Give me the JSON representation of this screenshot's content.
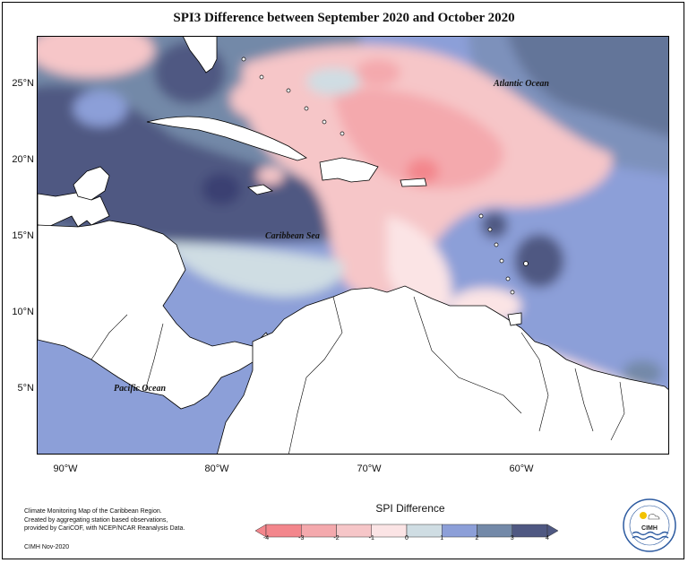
{
  "title": "SPI3 Difference between September 2020 and October 2020",
  "latitude_labels": [
    "25°N",
    "20°N",
    "15°N",
    "10°N",
    "5°N"
  ],
  "longitude_labels": [
    "90°W",
    "80°W",
    "70°W",
    "60°W"
  ],
  "ocean_labels": {
    "atlantic": "Atlantic Ocean",
    "caribbean": "Caribbean Sea",
    "pacific": "Pacific Ocean"
  },
  "credits": {
    "line1": "Climate Monitoring Map of the Caribbean Region.",
    "line2": "Created by aggregating station based observations,",
    "line3": "provided by CariCOF, with NCEP/NCAR Reanalysis Data.",
    "issued": "CIMH Nov-2020"
  },
  "legend": {
    "title": "SPI Difference",
    "ticks": [
      "-4",
      "-3",
      "-2",
      "-1",
      "0",
      "1",
      "2",
      "3",
      "4"
    ],
    "colors": [
      "#f3868c",
      "#f4a9ad",
      "#f6c6c8",
      "#fbe4e5",
      "#cfdde3",
      "#8c9fd8",
      "#7389a8",
      "#4f5882"
    ]
  },
  "logo": {
    "text": "CIMH"
  }
}
